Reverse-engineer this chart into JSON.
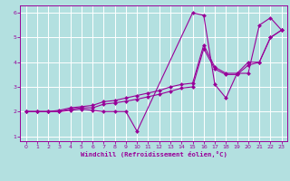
{
  "xlabel": "Windchill (Refroidissement éolien,°C)",
  "background_color": "#b3e0e0",
  "grid_color": "#ffffff",
  "line_color": "#990099",
  "xlim": [
    -0.5,
    23.5
  ],
  "ylim": [
    0.8,
    6.3
  ],
  "xticks": [
    0,
    1,
    2,
    3,
    4,
    5,
    6,
    7,
    8,
    9,
    10,
    11,
    12,
    13,
    14,
    15,
    16,
    17,
    18,
    19,
    20,
    21,
    22,
    23
  ],
  "yticks": [
    1,
    2,
    3,
    4,
    5,
    6
  ],
  "series": [
    {
      "x": [
        0,
        1,
        2,
        3,
        4,
        5,
        6,
        7,
        8,
        9,
        10,
        15,
        16,
        17,
        18,
        19,
        20,
        21,
        22,
        23
      ],
      "y": [
        2.0,
        2.0,
        2.0,
        2.0,
        2.05,
        2.1,
        2.05,
        2.0,
        2.0,
        2.0,
        1.2,
        6.0,
        5.9,
        3.1,
        2.55,
        3.55,
        3.55,
        5.5,
        5.8,
        5.3
      ]
    },
    {
      "x": [
        0,
        1,
        2,
        3,
        4,
        5,
        6,
        7,
        8,
        9,
        10,
        11,
        12,
        13,
        14,
        15,
        16,
        17,
        18,
        19,
        20,
        21,
        22,
        23
      ],
      "y": [
        2.0,
        2.0,
        2.0,
        2.05,
        2.15,
        2.2,
        2.25,
        2.4,
        2.45,
        2.55,
        2.65,
        2.75,
        2.85,
        3.0,
        3.1,
        3.15,
        4.7,
        3.8,
        3.55,
        3.55,
        4.0,
        4.0,
        5.0,
        5.3
      ]
    },
    {
      "x": [
        0,
        1,
        2,
        3,
        4,
        5,
        6,
        7,
        8,
        9,
        10,
        11,
        12,
        13,
        14,
        15,
        16,
        17,
        18,
        19,
        20,
        21,
        22,
        23
      ],
      "y": [
        2.0,
        2.0,
        2.0,
        2.0,
        2.1,
        2.15,
        2.15,
        2.3,
        2.35,
        2.42,
        2.5,
        2.6,
        2.7,
        2.82,
        2.95,
        3.0,
        4.55,
        3.72,
        3.5,
        3.5,
        3.88,
        4.0,
        5.0,
        5.3
      ]
    }
  ]
}
